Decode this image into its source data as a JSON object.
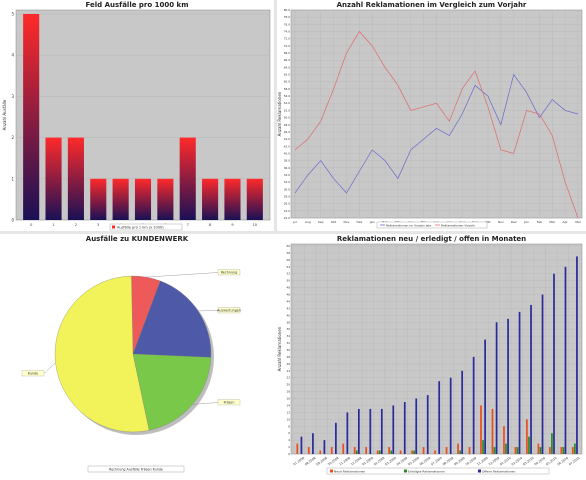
{
  "chart_data": [
    {
      "type": "bar",
      "title": "Feld Ausfälle pro 1000 km",
      "xlabel": "",
      "ylabel": "Anzahl Ausfälle",
      "categories": [
        "0",
        "1",
        "2",
        "3",
        "4",
        "5",
        "6",
        "7",
        "8",
        "9",
        "10"
      ],
      "values": [
        5,
        2,
        2,
        1,
        1,
        1,
        1,
        2,
        1,
        1,
        1
      ],
      "ylim": [
        0,
        5
      ],
      "yticks": [
        "0",
        "1",
        "2",
        "3",
        "4",
        "5"
      ],
      "legend": "Ausfälle pro 1 km (x 1000)",
      "legend_position": "bottom",
      "colors": {
        "top": "#ff2a2a",
        "bottom": "#1a1055",
        "plot_bg": "#c8c8c8"
      },
      "grid": true
    },
    {
      "type": "line",
      "title": "Anzahl Reklamationen im Vergleich zum Vorjahr",
      "xlabel": "",
      "ylabel": "Anzahl Reklamationen",
      "categories": [
        "Jul",
        "Aug",
        "Sep",
        "Okt",
        "Nov",
        "Dez",
        "Jan",
        "Feb",
        "Mär",
        "Apr",
        "Mai",
        "Jun",
        "Jul",
        "Aug",
        "Sep",
        "Okt",
        "Nov",
        "Dez",
        "Jan",
        "Feb",
        "Mär",
        "Apr",
        "Mai"
      ],
      "series": [
        {
          "name": "Reklamationen im Vorjahr Jahr",
          "color": "#6a6acc",
          "values": [
            29,
            34,
            38,
            33,
            29,
            35,
            41,
            38,
            33,
            41,
            44,
            47,
            45,
            51,
            59,
            56,
            48,
            62,
            57,
            50,
            55,
            52,
            51
          ]
        },
        {
          "name": "Reklamationen Vorjahr",
          "color": "#e06a6a",
          "values": [
            41,
            44,
            49,
            58,
            68,
            74,
            70,
            64,
            59,
            52,
            53,
            54,
            49,
            58,
            63,
            53,
            41,
            40,
            52,
            51,
            45,
            32,
            22
          ]
        }
      ],
      "ylim": [
        22,
        80
      ],
      "legend_position": "bottom",
      "colors": {
        "plot_bg": "#c8c8c8"
      },
      "grid": true
    },
    {
      "type": "pie",
      "title": "Ausfälle zu KUNDENWERK",
      "slices": [
        {
          "label": "Rechnung",
          "value": 6,
          "color": "#ee5a5a"
        },
        {
          "label": "Auswertungen",
          "value": 20,
          "color": "#4e5aa8"
        },
        {
          "label": "Fräsen",
          "value": 21,
          "color": "#7ac84a"
        },
        {
          "label": "Kunde",
          "value": 53,
          "color": "#f2f25a"
        }
      ],
      "legend": "Rechnung  Ausfälle  Fräsen  Kunde",
      "legend_position": "bottom"
    },
    {
      "type": "bar",
      "title": "Reklamationen neu / erledigt / offen in Monaten",
      "xlabel": "",
      "ylabel": "Anzahl Reklamationen",
      "categories": [
        "07.2008",
        "08.2008",
        "09.2008",
        "10.2008",
        "11.2008",
        "12.2008",
        "01.2009",
        "02.2009",
        "03.2009",
        "04.2009",
        "05.2009",
        "06.2009",
        "07.2009",
        "08.2009",
        "09.2009",
        "10.2009",
        "11.2009",
        "12.2009",
        "01.2010",
        "02.2010",
        "03.2010",
        "04.2010",
        "05.2010",
        "06.2010",
        "07.2010"
      ],
      "series": [
        {
          "name": "Neue Reklamationen",
          "color": "#e85020",
          "values": [
            3,
            2,
            1,
            2,
            3,
            2,
            2,
            1,
            2,
            1,
            1,
            2,
            1,
            2,
            3,
            2,
            14,
            13,
            8,
            2,
            10,
            3,
            2,
            2,
            2
          ]
        },
        {
          "name": "Erledigte Reklamationen",
          "color": "#2a8a2a",
          "values": [
            0,
            0,
            0,
            0,
            0,
            1,
            0,
            1,
            1,
            0,
            1,
            0,
            0,
            0,
            1,
            0,
            4,
            2,
            3,
            2,
            5,
            2,
            6,
            2,
            3
          ]
        },
        {
          "name": "Offene Reklamationen",
          "color": "#2a2a9a",
          "values": [
            5,
            6,
            4,
            9,
            12,
            13,
            13,
            13,
            14,
            15,
            16,
            17,
            21,
            22,
            24,
            28,
            33,
            38,
            39,
            41,
            43,
            46,
            52,
            54,
            57
          ]
        }
      ],
      "ylim": [
        0,
        60
      ],
      "legend_position": "bottom",
      "colors": {
        "plot_bg": "#c8c8c8"
      },
      "grid": true
    }
  ]
}
